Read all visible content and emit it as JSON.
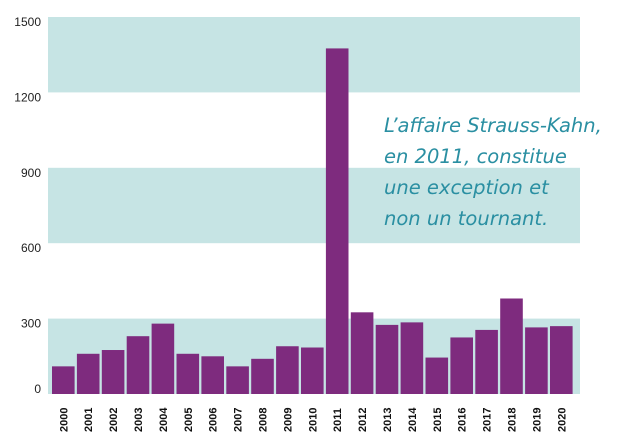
{
  "chart_data": {
    "type": "bar",
    "categories": [
      "2000",
      "2001",
      "2002",
      "2003",
      "2004",
      "2005",
      "2006",
      "2007",
      "2008",
      "2009",
      "2010",
      "2011",
      "2012",
      "2013",
      "2014",
      "2015",
      "2016",
      "2017",
      "2018",
      "2019",
      "2020"
    ],
    "values": [
      110,
      160,
      175,
      230,
      280,
      160,
      150,
      110,
      140,
      190,
      185,
      1375,
      325,
      275,
      285,
      145,
      225,
      255,
      380,
      265,
      270
    ],
    "ylim": [
      0,
      1500
    ],
    "yticks": [
      0,
      300,
      600,
      900,
      1200,
      1500
    ],
    "band_ranges": [
      [
        0,
        300
      ],
      [
        600,
        900
      ],
      [
        1200,
        1500
      ]
    ],
    "grid": false,
    "annotation_lines": [
      "L’affaire Strauss-Kahn,",
      "en 2011, constitue",
      "une exception et",
      "non un tournant."
    ],
    "colors": {
      "bar": "#7e2b7e",
      "band": "#c6e4e4",
      "annotation": "#2a8fa2"
    }
  }
}
